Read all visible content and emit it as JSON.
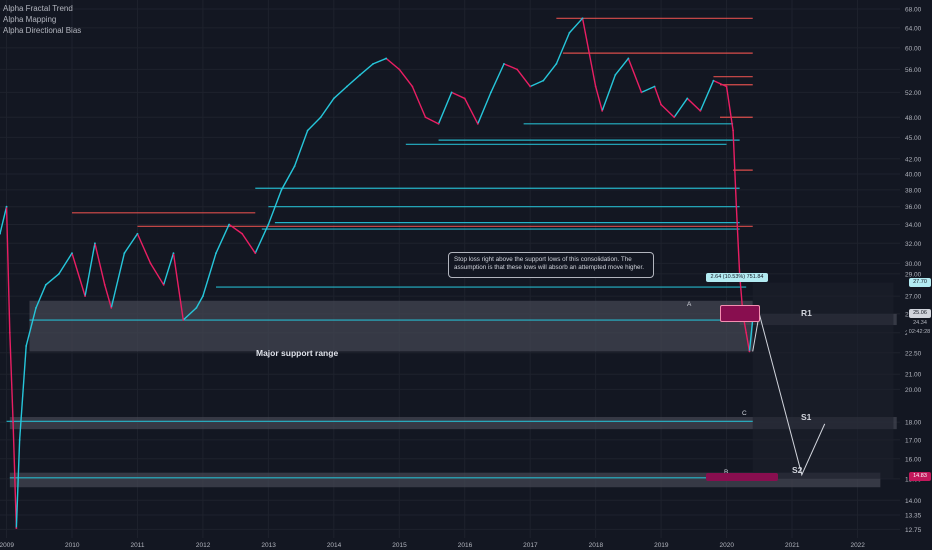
{
  "legend": {
    "items": [
      "Alpha Fractal Trend",
      "Alpha Mapping",
      "Alpha Directional Bias"
    ]
  },
  "annotations": {
    "callout": "Stop loss right above the support lows of this consolidation. The assumption is that these lows will absorb an attempted move higher.",
    "major_support": "Major support range",
    "measure": "2.64 (10.53%) 751.84",
    "zones": {
      "r1": "R1",
      "s1": "S1",
      "s2": "S2"
    },
    "points": {
      "a": "A",
      "b": "B",
      "c": "C"
    }
  },
  "price_tags": {
    "top": "27.70",
    "mid": "25.06",
    "low": "24.34",
    "timer": "02:42:28",
    "s2": "14.83"
  },
  "colors": {
    "background": "#131722",
    "bull": "#26c6da",
    "bear": "#e91e63",
    "resistance": "#ef5350",
    "zone": "#434651",
    "grid": "#1e222d",
    "text": "#b2b5be"
  },
  "chart_data": {
    "type": "line",
    "xlabel": "",
    "ylabel": "",
    "x_ticks": [
      "2009",
      "2010",
      "2011",
      "2012",
      "2013",
      "2014",
      "2015",
      "2016",
      "2017",
      "2018",
      "2019",
      "2020",
      "2021",
      "2022"
    ],
    "y_ticks": [
      "68.00",
      "64.00",
      "60.00",
      "56.00",
      "52.00",
      "48.00",
      "45.00",
      "42.00",
      "40.00",
      "38.00",
      "36.00",
      "34.00",
      "32.00",
      "30.00",
      "29.00",
      "27.00",
      "25.50",
      "24.00",
      "22.50",
      "21.00",
      "20.00",
      "18.00",
      "17.00",
      "16.00",
      "15.00",
      "14.00",
      "13.35",
      "12.75"
    ],
    "scale": "log",
    "ylim": [
      12.4,
      70
    ],
    "series": [
      {
        "x": [
          2008.9,
          2009.0,
          2009.05,
          2009.1,
          2009.15,
          2009.2,
          2009.3,
          2009.45,
          2009.6,
          2009.8,
          2010.0,
          2010.2,
          2010.35,
          2010.5,
          2010.6,
          2010.8,
          2011.0,
          2011.2,
          2011.4,
          2011.55,
          2011.7,
          2011.9,
          2012.0,
          2012.2,
          2012.4,
          2012.6,
          2012.8,
          2013.0,
          2013.2,
          2013.4,
          2013.6,
          2013.8,
          2014.0,
          2014.2,
          2014.4,
          2014.6,
          2014.8,
          2015.0,
          2015.2,
          2015.4,
          2015.6,
          2015.8,
          2016.0,
          2016.2,
          2016.4,
          2016.6,
          2016.8,
          2017.0,
          2017.2,
          2017.4,
          2017.6,
          2017.8,
          2018.0,
          2018.1,
          2018.3,
          2018.5,
          2018.7,
          2018.9,
          2019.0,
          2019.2,
          2019.4,
          2019.6,
          2019.8,
          2020.0,
          2020.1,
          2020.15,
          2020.2,
          2020.25,
          2020.3,
          2020.35,
          2020.4
        ],
        "values": [
          33,
          36,
          24,
          18,
          12.8,
          17,
          23,
          26,
          28,
          29,
          31,
          27,
          32,
          28,
          26,
          31,
          33,
          30,
          28,
          31,
          25,
          26,
          27,
          31,
          34,
          33,
          31,
          34,
          38,
          41,
          46,
          48,
          51,
          53,
          55,
          57,
          58,
          56,
          53,
          48,
          47,
          52,
          51,
          47,
          52,
          57,
          56,
          53,
          54,
          57,
          63,
          66,
          53,
          49,
          55,
          58,
          52,
          53,
          50,
          48,
          51,
          49,
          54,
          53,
          46,
          36,
          29,
          25.5,
          24,
          22.6,
          25.06
        ]
      }
    ]
  }
}
